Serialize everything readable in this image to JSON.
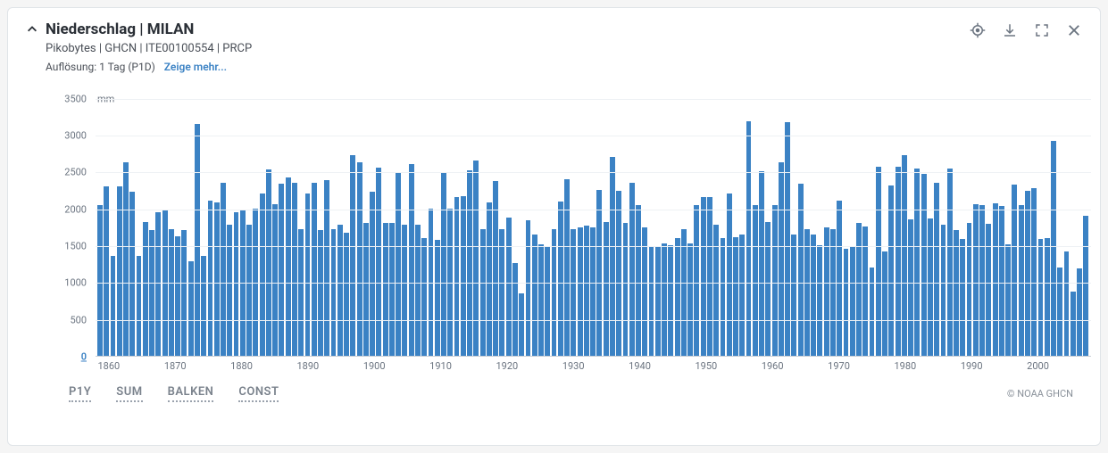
{
  "header": {
    "title": "Niederschlag | MILAN",
    "subtitle": "Pikobytes | GHCN | ITE00100554 | PRCP",
    "resolution_label": "Auflösung: 1 Tag (P1D)",
    "show_more": "Zeige mehr..."
  },
  "chart": {
    "type": "bar",
    "unit": "mm",
    "bar_color": "#3b82c4",
    "background_color": "#ffffff",
    "grid_color": "#eef1f4",
    "axis_color": "#c9ced5",
    "text_color": "#6b7480",
    "label_fontsize": 11,
    "ylim": [
      0,
      3750
    ],
    "yticks": [
      0,
      500,
      1000,
      1500,
      2000,
      2500,
      3000,
      3500
    ],
    "xlim": [
      1858,
      2008
    ],
    "xticks": [
      1860,
      1870,
      1880,
      1890,
      1900,
      1910,
      1920,
      1930,
      1940,
      1950,
      1960,
      1970,
      1980,
      1990,
      2000
    ],
    "years": [
      1858,
      1859,
      1860,
      1861,
      1862,
      1863,
      1864,
      1865,
      1866,
      1867,
      1868,
      1869,
      1870,
      1871,
      1872,
      1873,
      1874,
      1875,
      1876,
      1877,
      1878,
      1879,
      1880,
      1881,
      1882,
      1883,
      1884,
      1885,
      1886,
      1887,
      1888,
      1889,
      1890,
      1891,
      1892,
      1893,
      1894,
      1895,
      1896,
      1897,
      1898,
      1899,
      1900,
      1901,
      1902,
      1903,
      1904,
      1905,
      1906,
      1907,
      1908,
      1909,
      1910,
      1911,
      1912,
      1913,
      1914,
      1915,
      1916,
      1917,
      1918,
      1919,
      1920,
      1921,
      1922,
      1923,
      1924,
      1925,
      1926,
      1927,
      1928,
      1929,
      1930,
      1931,
      1932,
      1933,
      1934,
      1935,
      1936,
      1937,
      1938,
      1939,
      1940,
      1941,
      1942,
      1943,
      1944,
      1945,
      1946,
      1947,
      1948,
      1949,
      1950,
      1951,
      1952,
      1953,
      1954,
      1955,
      1956,
      1957,
      1958,
      1959,
      1960,
      1961,
      1962,
      1963,
      1964,
      1965,
      1966,
      1967,
      1968,
      1969,
      1970,
      1971,
      1972,
      1973,
      1974,
      1975,
      1976,
      1977,
      1978,
      1979,
      1980,
      1981,
      1982,
      1983,
      1984,
      1985,
      1986,
      1987,
      1988,
      1989,
      1990,
      1991,
      1992,
      1993,
      1994,
      1995,
      1996,
      1997,
      1998,
      1999,
      2000,
      2001,
      2002,
      2003,
      2004,
      2005,
      2006,
      2007,
      2008
    ],
    "values": [
      2050,
      2300,
      1350,
      2300,
      2620,
      2220,
      1350,
      1820,
      1700,
      1950,
      1980,
      1720,
      1620,
      1700,
      1280,
      3140,
      1350,
      2100,
      2080,
      2350,
      1780,
      1950,
      1980,
      1780,
      2000,
      2200,
      2530,
      2060,
      2330,
      2420,
      2350,
      1720,
      2200,
      2350,
      1700,
      2380,
      1720,
      1780,
      1670,
      2720,
      2630,
      1800,
      2220,
      2550,
      1800,
      1800,
      2480,
      1780,
      2600,
      1780,
      1600,
      2000,
      1570,
      2480,
      2000,
      2150,
      2170,
      2520,
      2650,
      1720,
      2080,
      2370,
      1720,
      1880,
      1260,
      850,
      1840,
      1640,
      1510,
      1480,
      1720,
      2090,
      2400,
      1720,
      1740,
      1770,
      1740,
      2250,
      1820,
      2700,
      2240,
      1800,
      2350,
      2040,
      1740,
      1480,
      1470,
      1520,
      1500,
      1600,
      1720,
      1520,
      2050,
      2150,
      2150,
      1780,
      1600,
      2200,
      1610,
      1640,
      3180,
      2040,
      2510,
      1820,
      2050,
      2620,
      3170,
      1640,
      2330,
      1720,
      1650,
      1500,
      1740,
      1720,
      2110,
      1450,
      1480,
      1800,
      1750,
      1200,
      2570,
      1420,
      2310,
      2560,
      2720,
      1850,
      2540,
      2470,
      1860,
      2350,
      1780,
      2540,
      1700,
      1580,
      1800,
      2060,
      2050,
      1790,
      2070,
      2030,
      1510,
      2320,
      2050,
      2240,
      2270,
      1590,
      1600,
      2910,
      1200,
      1420,
      870,
      1180,
      1900
    ]
  },
  "controls": [
    "P1Y",
    "SUM",
    "BALKEN",
    "CONST"
  ],
  "credit": "© NOAA GHCN"
}
